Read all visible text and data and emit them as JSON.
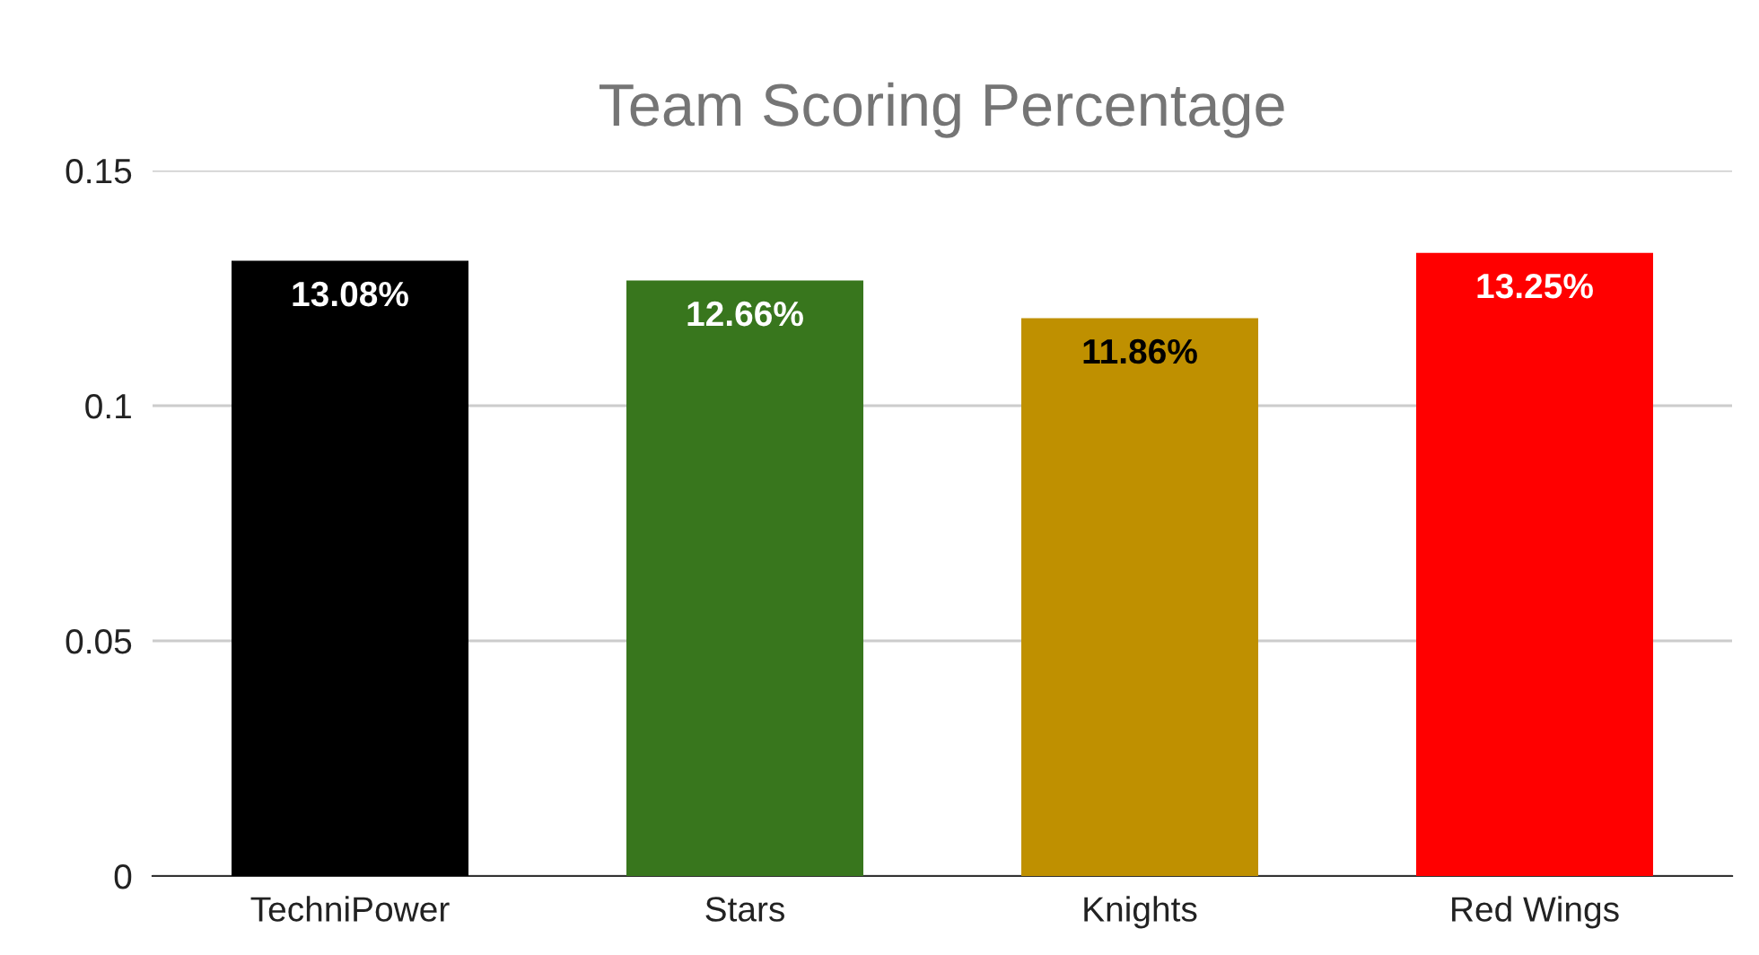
{
  "chart_data": {
    "type": "bar",
    "title": "Team Scoring Percentage",
    "categories": [
      "TechniPower",
      "Stars",
      "Knights",
      "Red Wings"
    ],
    "values": [
      0.1308,
      0.1266,
      0.1186,
      0.1325
    ],
    "colors": [
      "#000000",
      "#38761d",
      "#bf9000",
      "#ff0000"
    ],
    "value_labels": [
      "13.08%",
      "12.66%",
      "11.86%",
      "13.25%"
    ],
    "ylim": [
      0,
      0.15
    ],
    "yticks": [
      0,
      0.05,
      0.1,
      0.15
    ],
    "grid": "y",
    "legend": false
  }
}
